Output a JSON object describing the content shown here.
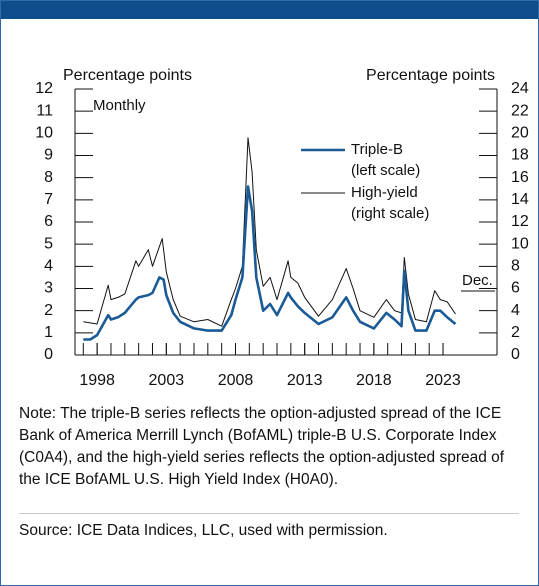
{
  "chart_data": {
    "type": "line",
    "left_axis_label": "Percentage points",
    "right_axis_label": "Percentage points",
    "annotations": [
      "Monthly",
      "Dec."
    ],
    "xlim": [
      1996.4,
      2026.9
    ],
    "xticks": [
      1998,
      2003,
      2008,
      2013,
      2018,
      2023
    ],
    "xminorticks": [
      1997,
      1998,
      1999,
      2000,
      2001,
      2002,
      2003,
      2004,
      2005,
      2006,
      2007,
      2008,
      2009,
      2010,
      2011,
      2012,
      2013,
      2014,
      2015,
      2016,
      2017,
      2018,
      2019,
      2020,
      2021,
      2022,
      2023
    ],
    "ylim": [
      0,
      12
    ],
    "yticks": [
      0,
      1,
      2,
      3,
      4,
      5,
      6,
      7,
      8,
      9,
      10,
      11,
      12
    ],
    "y2lim": [
      0,
      24
    ],
    "y2ticks": [
      0,
      2,
      4,
      6,
      8,
      10,
      12,
      14,
      16,
      18,
      20,
      22,
      24
    ],
    "series": [
      {
        "name": "Triple-B",
        "legend_note": "(left scale)",
        "color": "#1a5a96",
        "axis": "y",
        "x": [
          1997,
          1997.5,
          1998,
          1998.8,
          1999,
          1999.5,
          2000,
          2000.8,
          2001,
          2001.7,
          2002,
          2002.5,
          2002.8,
          2003,
          2003.5,
          2004,
          2005,
          2006,
          2007,
          2007.7,
          2008,
          2008.5,
          2008.9,
          2009.2,
          2009.5,
          2010,
          2010.5,
          2011,
          2011.8,
          2012,
          2012.5,
          2013,
          2014,
          2015,
          2016,
          2016.5,
          2017,
          2018,
          2018.9,
          2019.5,
          2020,
          2020.2,
          2020.5,
          2021,
          2021.8,
          2022.4,
          2022.8,
          2023.3,
          2023.9
        ],
        "values": [
          0.7,
          0.7,
          0.9,
          1.8,
          1.6,
          1.7,
          1.9,
          2.5,
          2.6,
          2.7,
          2.8,
          3.5,
          3.4,
          2.7,
          1.9,
          1.5,
          1.2,
          1.1,
          1.1,
          1.8,
          2.5,
          3.5,
          7.6,
          6.5,
          3.5,
          2.0,
          2.3,
          1.8,
          2.8,
          2.6,
          2.2,
          1.9,
          1.4,
          1.7,
          2.6,
          2.0,
          1.5,
          1.2,
          1.9,
          1.6,
          1.3,
          3.8,
          2.0,
          1.1,
          1.1,
          2.0,
          2.0,
          1.7,
          1.4
        ]
      },
      {
        "name": "High-yield",
        "legend_note": "(right scale)",
        "color": "#111111",
        "axis": "y2",
        "x": [
          1997,
          1998,
          1998.8,
          1999,
          1999.5,
          2000,
          2000.8,
          2001,
          2001.7,
          2002,
          2002.7,
          2003,
          2003.5,
          2004,
          2005,
          2006,
          2007,
          2007.7,
          2008,
          2008.5,
          2008.9,
          2009.2,
          2009.5,
          2010,
          2010.5,
          2011,
          2011.8,
          2012,
          2012.5,
          2013,
          2014,
          2015,
          2016,
          2016.5,
          2017,
          2018,
          2018.9,
          2019.5,
          2020,
          2020.2,
          2020.5,
          2021,
          2021.8,
          2022.4,
          2022.8,
          2023.3,
          2023.9
        ],
        "values": [
          3.0,
          2.8,
          6.3,
          5.0,
          5.2,
          5.5,
          8.5,
          8.0,
          9.5,
          8.0,
          10.5,
          7.5,
          5.0,
          3.5,
          3.0,
          3.2,
          2.6,
          5.0,
          6.0,
          8.0,
          19.6,
          16.5,
          9.5,
          6.2,
          7.0,
          5.0,
          8.5,
          7.0,
          6.5,
          5.2,
          3.5,
          5.0,
          7.8,
          6.0,
          4.0,
          3.4,
          5.0,
          4.0,
          3.8,
          8.8,
          5.5,
          3.2,
          3.0,
          5.8,
          5.0,
          4.8,
          3.7
        ]
      }
    ],
    "note": "Note: The triple-B series reflects the option-adjusted spread of the ICE Bank of America Merrill Lynch (BofAML) triple-B U.S. Corporate Index (C0A4), and the high-yield series reflects the option-adjusted spread of the ICE BofAML U.S. High Yield Index (H0A0).",
    "source": "Source: ICE Data Indices, LLC, used with permission."
  }
}
